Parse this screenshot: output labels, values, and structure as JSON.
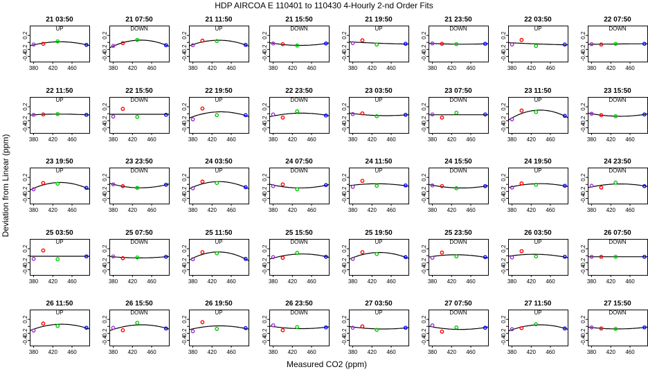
{
  "figure": {
    "title": "HDP   AIRCOA E   110401 to 110430   4-Hourly 2-nd Order Fits",
    "xlabel": "Measured CO2 (ppm)",
    "ylabel": "Deviation from Linear (ppm)",
    "colors": {
      "frame": "#000000",
      "fit_curve": "#000000",
      "points": [
        "#9933cc",
        "#ff0000",
        "#00cc00",
        "#0000ff"
      ]
    }
  },
  "chart_data": {
    "type": "scatter",
    "x_standards": [
      380,
      400,
      430,
      490
    ],
    "xlim": [
      372,
      496
    ],
    "ylim": [
      -0.55,
      0.48
    ],
    "xticks": [
      380,
      420,
      460
    ],
    "yticks": [
      0.2,
      0.0,
      -0.2,
      -0.4
    ],
    "ytick_labels": [
      "0.2",
      "",
      "-0.2",
      "-0.4"
    ],
    "grid": false,
    "legend": "none",
    "panels": [
      {
        "time": "21 03:50",
        "mode": "UP",
        "y": [
          -0.06,
          -0.04,
          0.03,
          -0.07
        ],
        "curve": "fit"
      },
      {
        "time": "21 07:50",
        "mode": "DOWN",
        "y": [
          -0.1,
          -0.02,
          0.07,
          -0.08
        ],
        "curve": "fit"
      },
      {
        "time": "21 11:50",
        "mode": "UP",
        "y": [
          -0.08,
          0.05,
          0.04,
          -0.07
        ],
        "curve": "fit"
      },
      {
        "time": "21 15:50",
        "mode": "DOWN",
        "y": [
          -0.03,
          -0.05,
          -0.09,
          -0.03
        ],
        "curve": "fit"
      },
      {
        "time": "21 19:50",
        "mode": "UP",
        "y": [
          -0.02,
          0.06,
          -0.06,
          -0.04
        ],
        "curve": "fit"
      },
      {
        "time": "21 23:50",
        "mode": "DOWN",
        "y": [
          -0.03,
          -0.04,
          -0.05,
          -0.04
        ],
        "curve": "fit"
      },
      {
        "time": "22 03:50",
        "mode": "UP",
        "y": [
          -0.06,
          0.07,
          -0.1,
          -0.06
        ],
        "curve": "fit"
      },
      {
        "time": "22 07:50",
        "mode": "DOWN",
        "y": [
          -0.05,
          -0.06,
          -0.04,
          -0.04
        ],
        "curve": "fit"
      },
      {
        "time": "22 11:50",
        "mode": "UP",
        "y": [
          -0.03,
          -0.02,
          -0.01,
          -0.03
        ],
        "curve": "fit"
      },
      {
        "time": "22 15:50",
        "mode": "DOWN",
        "y": [
          -0.08,
          0.14,
          -0.09,
          -0.03
        ],
        "curve": "flat"
      },
      {
        "time": "22 19:50",
        "mode": "UP",
        "y": [
          -0.16,
          0.15,
          -0.04,
          -0.04
        ],
        "curve": "fit"
      },
      {
        "time": "22 23:50",
        "mode": "DOWN",
        "y": [
          -0.02,
          -0.11,
          0.07,
          -0.05
        ],
        "curve": "fit"
      },
      {
        "time": "23 03:50",
        "mode": "UP",
        "y": [
          -0.01,
          0.01,
          -0.07,
          -0.03
        ],
        "curve": "fit"
      },
      {
        "time": "23 07:50",
        "mode": "DOWN",
        "y": [
          -0.02,
          -0.11,
          0.03,
          -0.02
        ],
        "curve": "flat"
      },
      {
        "time": "23 11:50",
        "mode": "UP",
        "y": [
          -0.16,
          0.09,
          0.05,
          -0.06
        ],
        "curve": "fit"
      },
      {
        "time": "23 15:50",
        "mode": "DOWN",
        "y": [
          0.0,
          -0.04,
          -0.07,
          -0.02
        ],
        "curve": "fit"
      },
      {
        "time": "23 19:50",
        "mode": "UP",
        "y": [
          -0.14,
          0.04,
          0.02,
          -0.1
        ],
        "curve": "fit"
      },
      {
        "time": "23 23:50",
        "mode": "DOWN",
        "y": [
          0.0,
          -0.05,
          -0.1,
          -0.01
        ],
        "curve": "fit"
      },
      {
        "time": "24 03:50",
        "mode": "UP",
        "y": [
          -0.11,
          0.08,
          0.04,
          -0.08
        ],
        "curve": "fit"
      },
      {
        "time": "24 07:50",
        "mode": "DOWN",
        "y": [
          -0.05,
          0.0,
          -0.14,
          -0.02
        ],
        "curve": "fit"
      },
      {
        "time": "24 11:50",
        "mode": "UP",
        "y": [
          -0.07,
          0.1,
          -0.04,
          -0.03
        ],
        "curve": "fit"
      },
      {
        "time": "24 15:50",
        "mode": "DOWN",
        "y": [
          -0.03,
          -0.05,
          -0.11,
          -0.05
        ],
        "curve": "fit"
      },
      {
        "time": "24 19:50",
        "mode": "UP",
        "y": [
          -0.09,
          0.03,
          -0.01,
          -0.04
        ],
        "curve": "fit"
      },
      {
        "time": "24 23:50",
        "mode": "DOWN",
        "y": [
          -0.04,
          -0.09,
          0.05,
          -0.05
        ],
        "curve": "fit"
      },
      {
        "time": "25 03:50",
        "mode": "UP",
        "y": [
          -0.09,
          0.15,
          -0.1,
          -0.02
        ],
        "curve": "flat"
      },
      {
        "time": "25 07:50",
        "mode": "DOWN",
        "y": [
          -0.02,
          -0.07,
          -0.05,
          -0.03
        ],
        "curve": "fit"
      },
      {
        "time": "25 11:50",
        "mode": "UP",
        "y": [
          -0.1,
          0.1,
          0.07,
          -0.09
        ],
        "curve": "fit"
      },
      {
        "time": "25 15:50",
        "mode": "DOWN",
        "y": [
          -0.04,
          -0.06,
          0.08,
          -0.03
        ],
        "curve": "fit"
      },
      {
        "time": "25 19:50",
        "mode": "UP",
        "y": [
          -0.09,
          0.1,
          0.05,
          -0.04
        ],
        "curve": "fit"
      },
      {
        "time": "25 23:50",
        "mode": "DOWN",
        "y": [
          -0.06,
          0.09,
          -0.02,
          -0.04
        ],
        "curve": "fit"
      },
      {
        "time": "26 03:50",
        "mode": "UP",
        "y": [
          -0.05,
          0.13,
          -0.02,
          -0.03
        ],
        "curve": "fit"
      },
      {
        "time": "26 07:50",
        "mode": "DOWN",
        "y": [
          -0.03,
          -0.03,
          -0.03,
          -0.03
        ],
        "curve": "fit"
      },
      {
        "time": "26 11:50",
        "mode": "UP",
        "y": [
          -0.12,
          0.08,
          0.01,
          -0.04
        ],
        "curve": "fit"
      },
      {
        "time": "26 15:50",
        "mode": "DOWN",
        "y": [
          -0.04,
          -0.11,
          0.1,
          -0.06
        ],
        "curve": "fit"
      },
      {
        "time": "26 19:50",
        "mode": "UP",
        "y": [
          -0.14,
          0.12,
          -0.07,
          -0.05
        ],
        "curve": "fit"
      },
      {
        "time": "26 23:50",
        "mode": "DOWN",
        "y": [
          0.03,
          -0.11,
          -0.02,
          -0.03
        ],
        "curve": "fit"
      },
      {
        "time": "27 03:50",
        "mode": "UP",
        "y": [
          -0.04,
          0.0,
          -0.1,
          -0.04
        ],
        "curve": "fit"
      },
      {
        "time": "27 07:50",
        "mode": "DOWN",
        "y": [
          0.03,
          -0.15,
          -0.03,
          -0.04
        ],
        "curve": "fit"
      },
      {
        "time": "27 11:50",
        "mode": "UP",
        "y": [
          -0.08,
          -0.05,
          0.06,
          -0.06
        ],
        "curve": "fit"
      },
      {
        "time": "27 15:50",
        "mode": "DOWN",
        "y": [
          -0.03,
          -0.06,
          -0.07,
          -0.03
        ],
        "curve": "fit"
      }
    ]
  }
}
